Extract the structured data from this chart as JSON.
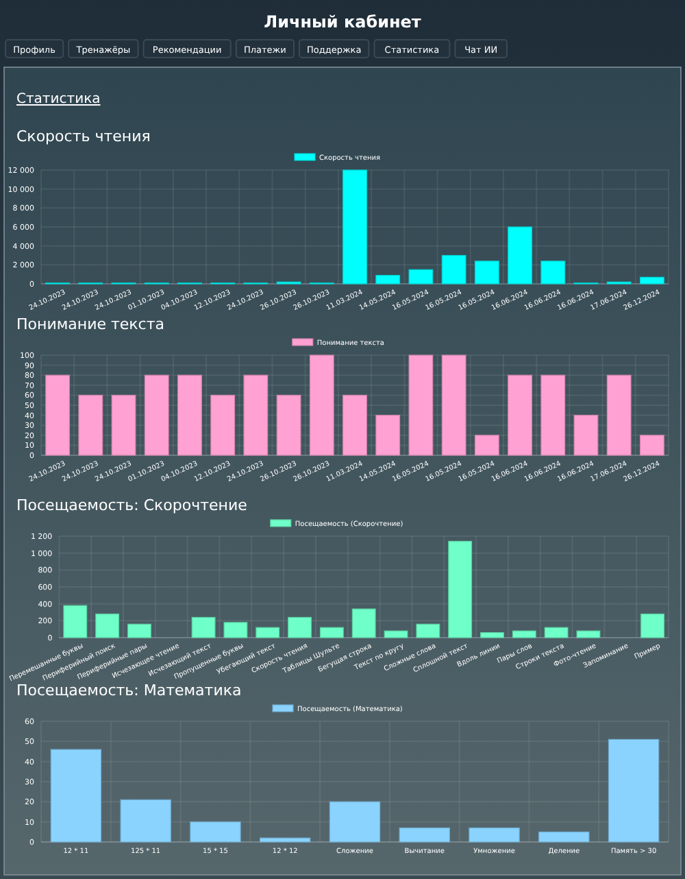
{
  "chart_data": [
    {
      "type": "other",
      "title": "Личный кабинет",
      "subtitle": "Статистика",
      "annotations": [
        "Профиль",
        "Тренажёры",
        "Рекомендации",
        "Платежи",
        "Поддержка",
        "Статистика",
        "Чат ИИ"
      ]
    },
    {
      "type": "bar",
      "title": "Скорость чтения",
      "categories": [
        "24.10.2023",
        "24.10.2023",
        "24.10.2023",
        "01.10.2023",
        "04.10.2023",
        "12.10.2023",
        "24.10.2023",
        "26.10.2023",
        "26.10.2023",
        "11.03.2024",
        "14.05.2024",
        "16.05.2024",
        "16.05.2024",
        "16.05.2024",
        "16.06.2024",
        "16.06.2024",
        "16.06.2024",
        "17.06.2024",
        "26.12.2024"
      ],
      "series": [
        {
          "name": "Скорость чтения",
          "color": "#00ffff",
          "values": [
            100,
            100,
            100,
            100,
            100,
            100,
            100,
            200,
            100,
            12000,
            900,
            1500,
            3000,
            2400,
            6000,
            2400,
            100,
            200,
            700
          ]
        }
      ],
      "ylim": [
        0,
        12000
      ],
      "yticks": [
        0,
        {
          "value": 2000,
          "label": "2 000"
        },
        {
          "value": 4000,
          "label": "4 000"
        },
        {
          "value": 6000,
          "label": "6 000"
        },
        {
          "value": 8000,
          "label": "8 000"
        },
        {
          "value": 10000,
          "label": "10 000"
        },
        {
          "value": 12000,
          "label": "12 000"
        }
      ],
      "grid": true,
      "legend": "top"
    },
    {
      "type": "bar",
      "title": "Понимание текста",
      "categories": [
        "24.10.2023",
        "24.10.2023",
        "24.10.2023",
        "01.10.2023",
        "04.10.2023",
        "12.10.2023",
        "24.10.2023",
        "26.10.2023",
        "26.10.2023",
        "11.03.2024",
        "14.05.2024",
        "16.05.2024",
        "16.05.2024",
        "16.05.2024",
        "16.06.2024",
        "16.06.2024",
        "16.06.2024",
        "17.06.2024",
        "26.12.2024"
      ],
      "series": [
        {
          "name": "Понимание текста",
          "color": "#ffa1d2",
          "values": [
            80,
            60,
            60,
            80,
            80,
            60,
            80,
            60,
            100,
            60,
            40,
            100,
            100,
            20,
            80,
            80,
            40,
            80,
            20
          ]
        }
      ],
      "ylim": [
        0,
        100
      ],
      "yticks": [
        0,
        10,
        20,
        30,
        40,
        50,
        60,
        70,
        80,
        90,
        100
      ],
      "grid": true,
      "legend": "top"
    },
    {
      "type": "bar",
      "title": "Посещаемость: Скорочтение",
      "categories": [
        "Перемешанные буквы",
        "Периферийный поиск",
        "Периферийные пары",
        "Исчезающее чтение",
        "Исчезающий текст",
        "Пропущенные буквы",
        "Убегающий текст",
        "Скорость чтения",
        "Таблицы Шульте",
        "Бегущая строка",
        "Текст по кругу",
        "Сложные слова",
        "Сплошной текст",
        "Вдоль линии",
        "Пары слов",
        "Строки текста",
        "Фото-чтение",
        "Запоминание",
        "Пример"
      ],
      "series": [
        {
          "name": "Посещаемость (Скорочтение)",
          "color": "#6fffc8",
          "values": [
            380,
            280,
            160,
            0,
            240,
            180,
            120,
            240,
            120,
            340,
            80,
            160,
            1140,
            60,
            80,
            120,
            80,
            0,
            280
          ]
        }
      ],
      "ylim": [
        0,
        1200
      ],
      "yticks": [
        0,
        200,
        400,
        600,
        800,
        {
          "value": 1000,
          "label": "1 000"
        },
        {
          "value": 1200,
          "label": "1 200"
        }
      ],
      "grid": true,
      "legend": "top"
    },
    {
      "type": "bar",
      "title": "Посещаемость: Математика",
      "categories": [
        "12 * 11",
        "125 * 11",
        "15 * 15",
        "12 * 12",
        "Сложение",
        "Вычитание",
        "Умножение",
        "Деление",
        "Память > 30"
      ],
      "series": [
        {
          "name": "Посещаемость (Математика)",
          "color": "#8ad3ff",
          "values": [
            46,
            21,
            10,
            2,
            20,
            7,
            7,
            5,
            51
          ]
        }
      ],
      "ylim": [
        0,
        60
      ],
      "yticks": [
        0,
        10,
        20,
        30,
        40,
        50,
        60
      ],
      "grid": true,
      "legend": "top"
    }
  ]
}
